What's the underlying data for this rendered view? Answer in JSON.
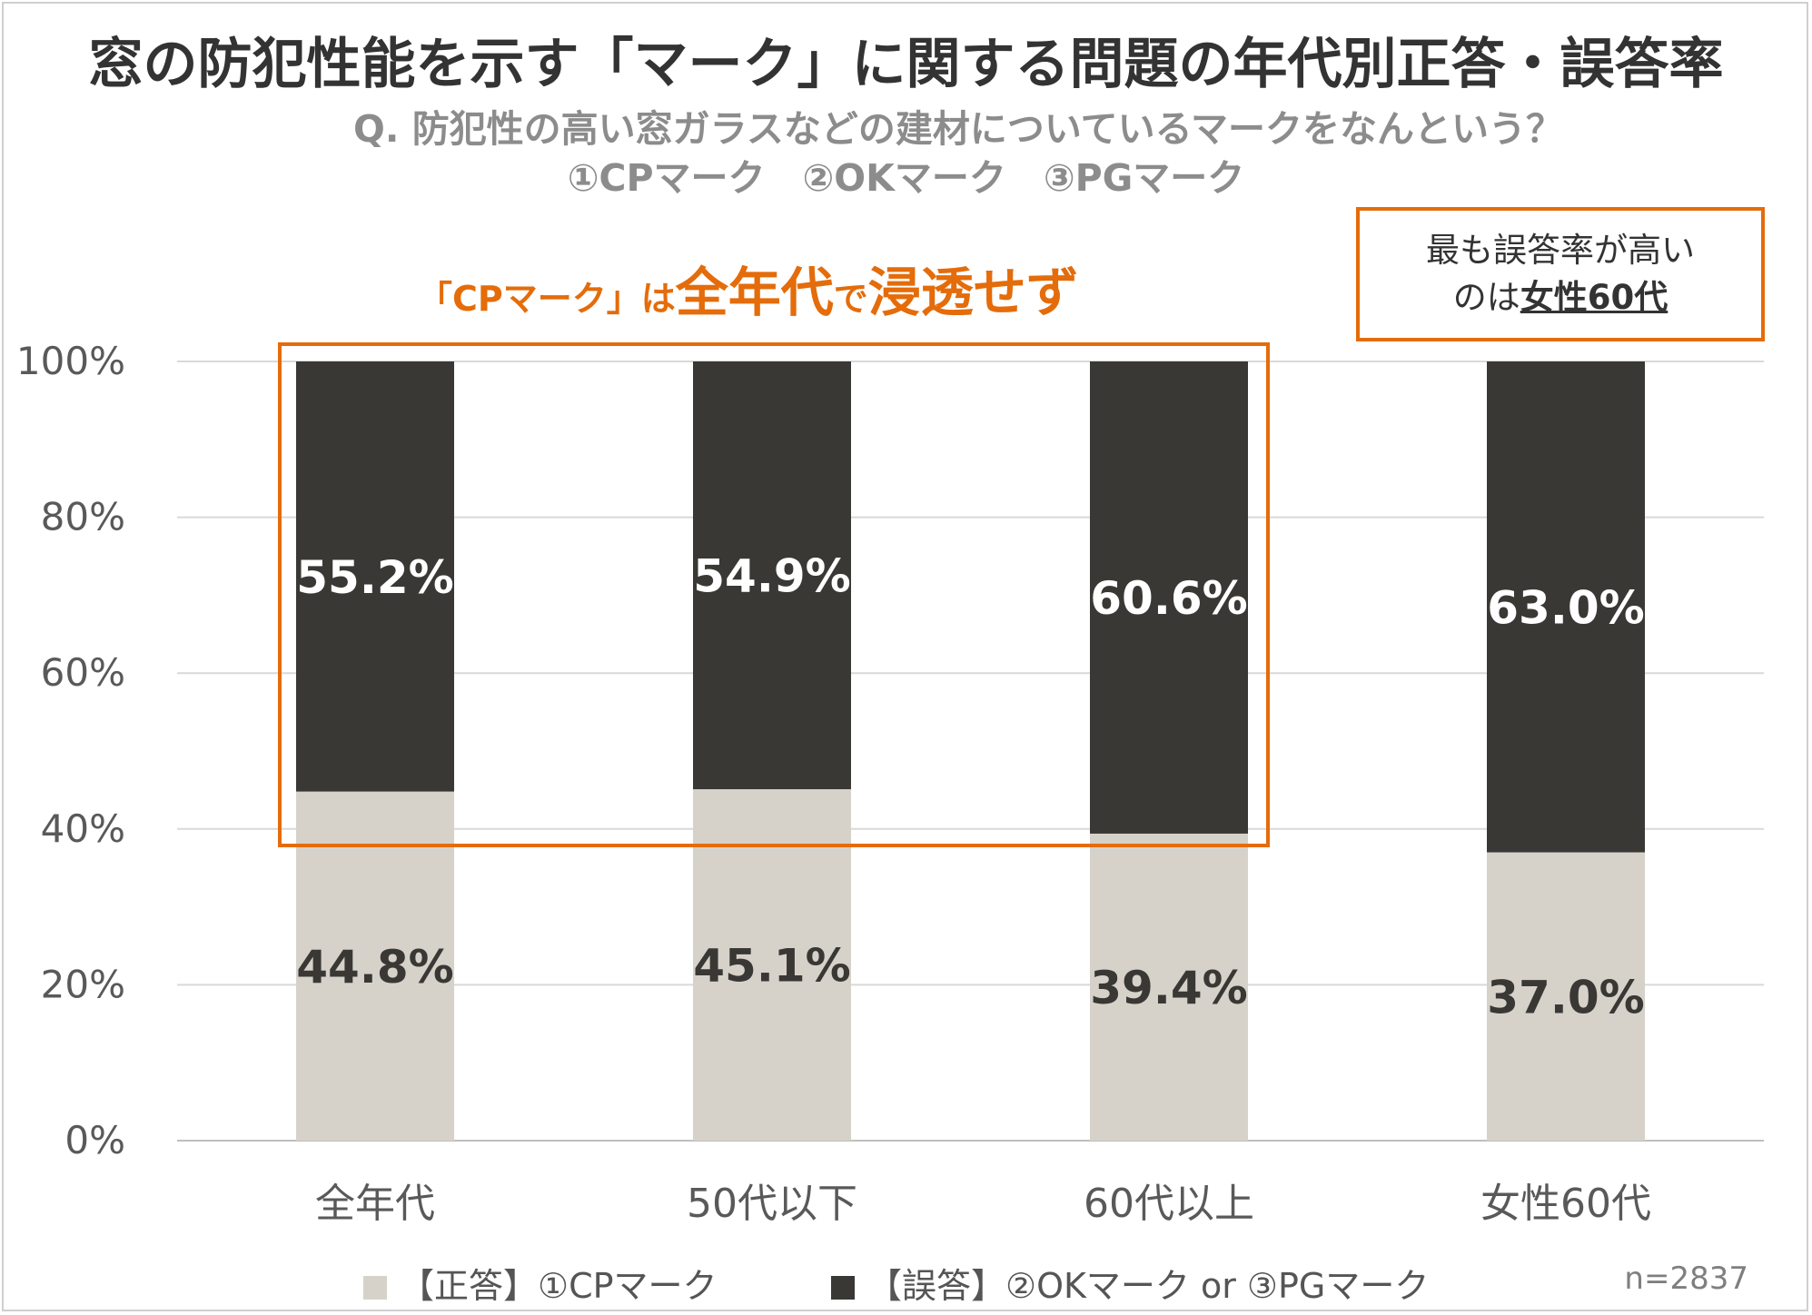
{
  "title": "窓の防犯性能を示す「マーク」に関する問題の年代別正答・誤答率",
  "question_line1": "Q. 防犯性の高い窓ガラスなどの建材についているマークをなんという？",
  "question_line2": "①CPマーク　②OKマーク　③PGマーク",
  "callout_left": {
    "part1": "「CPマーク」は",
    "part2": "全年代",
    "part3": "で",
    "part4": "浸透せず"
  },
  "callout_right": {
    "line1": "最も誤答率が高い",
    "line2_prefix": "のは",
    "line2_highlight": "女性60代"
  },
  "sample_size": "n=2837",
  "colors": {
    "correct": "#d6d2ca",
    "incorrect": "#3a3835",
    "accent": "#e46c0a",
    "grid": "#d9d9d9",
    "axis_text": "#595959"
  },
  "chart_data": {
    "type": "bar",
    "stacked": true,
    "categories": [
      "全年代",
      "50代以下",
      "60代以上",
      "女性60代"
    ],
    "series": [
      {
        "name": "【正答】①CPマーク",
        "values": [
          44.8,
          45.1,
          39.4,
          37.0
        ],
        "labels": [
          "44.8%",
          "45.1%",
          "39.4%",
          "37.0%"
        ]
      },
      {
        "name": "【誤答】②OKマーク or ③PGマーク",
        "values": [
          55.2,
          54.9,
          60.6,
          63.0
        ],
        "labels": [
          "55.2%",
          "54.9%",
          "60.6%",
          "63.0%"
        ]
      }
    ],
    "ylim": [
      0,
      100
    ],
    "yticks": [
      0,
      20,
      40,
      60,
      80,
      100
    ],
    "ytick_labels": [
      "0%",
      "20%",
      "40%",
      "60%",
      "80%",
      "100%"
    ],
    "legend_position": "bottom",
    "grid": true
  }
}
